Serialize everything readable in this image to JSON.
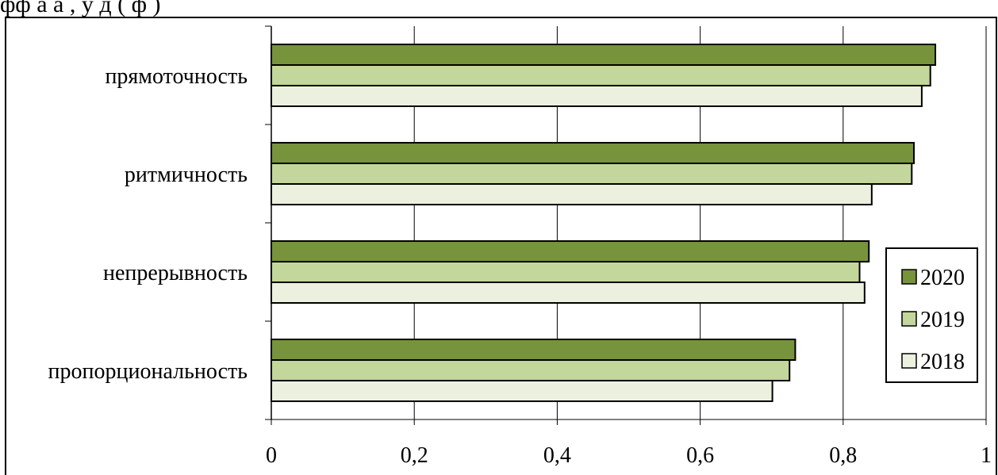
{
  "caption": "фф  а       а                ,   у                                  д    (  ф   )",
  "chart_data": {
    "type": "bar",
    "orientation": "horizontal",
    "categories": [
      "пропорциональность",
      "непрерывность",
      "ритмичность",
      "прямоточность"
    ],
    "series": [
      {
        "name": "2020",
        "color": "#77933c",
        "values": [
          0.733,
          0.836,
          0.899,
          0.929
        ]
      },
      {
        "name": "2019",
        "color": "#c3d69b",
        "values": [
          0.725,
          0.823,
          0.896,
          0.922
        ]
      },
      {
        "name": "2018",
        "color": "#ebf1de",
        "values": [
          0.701,
          0.83,
          0.84,
          0.91
        ]
      }
    ],
    "x_ticks": [
      "0",
      "0,2",
      "0,4",
      "0,6",
      "0,8",
      "1"
    ],
    "xlim": [
      0,
      1
    ],
    "grid": "vertical",
    "legend_position": "right",
    "title": "",
    "xlabel": "",
    "ylabel": ""
  }
}
